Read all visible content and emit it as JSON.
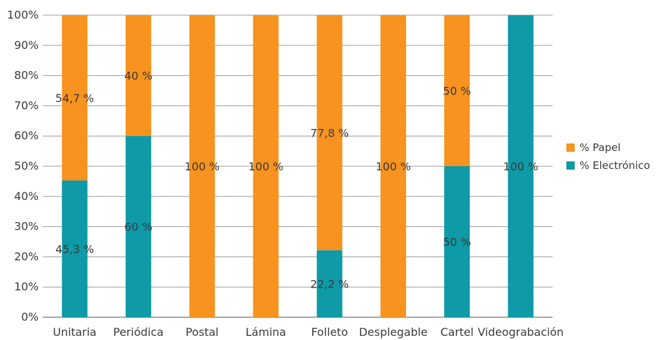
{
  "chart_data": {
    "type": "bar",
    "stacked": true,
    "percent_stacked": true,
    "title": "",
    "xlabel": "",
    "ylabel": "",
    "ylim": [
      0,
      100
    ],
    "yticks": [
      "0%",
      "10%",
      "20%",
      "30%",
      "40%",
      "50%",
      "60%",
      "70%",
      "80%",
      "90%",
      "100%"
    ],
    "grid": true,
    "legend_position": "right",
    "categories": [
      "Unitaria",
      "Periódica",
      "Postal",
      "Lámina",
      "Folleto",
      "Desplegable",
      "Cartel",
      "Videograbación"
    ],
    "series": [
      {
        "name": "% Electrónico",
        "color": "#0e9aa7",
        "values": [
          45.3,
          60,
          0,
          0,
          22.2,
          0,
          50,
          100
        ],
        "labels": [
          "45,3 %",
          "60 %",
          "",
          "",
          "22,2 %",
          "",
          "50 %",
          "100 %"
        ]
      },
      {
        "name": "% Papel",
        "color": "#f7931e",
        "values": [
          54.7,
          40,
          100,
          100,
          77.8,
          100,
          50,
          0
        ],
        "labels": [
          "54,7 %",
          "40 %",
          "100 %",
          "100 %",
          "77,8 %",
          "100 %",
          "50 %",
          ""
        ]
      }
    ],
    "legend": [
      {
        "name": "% Papel",
        "color": "#f7931e"
      },
      {
        "name": "% Electrónico",
        "color": "#0e9aa7"
      }
    ]
  }
}
